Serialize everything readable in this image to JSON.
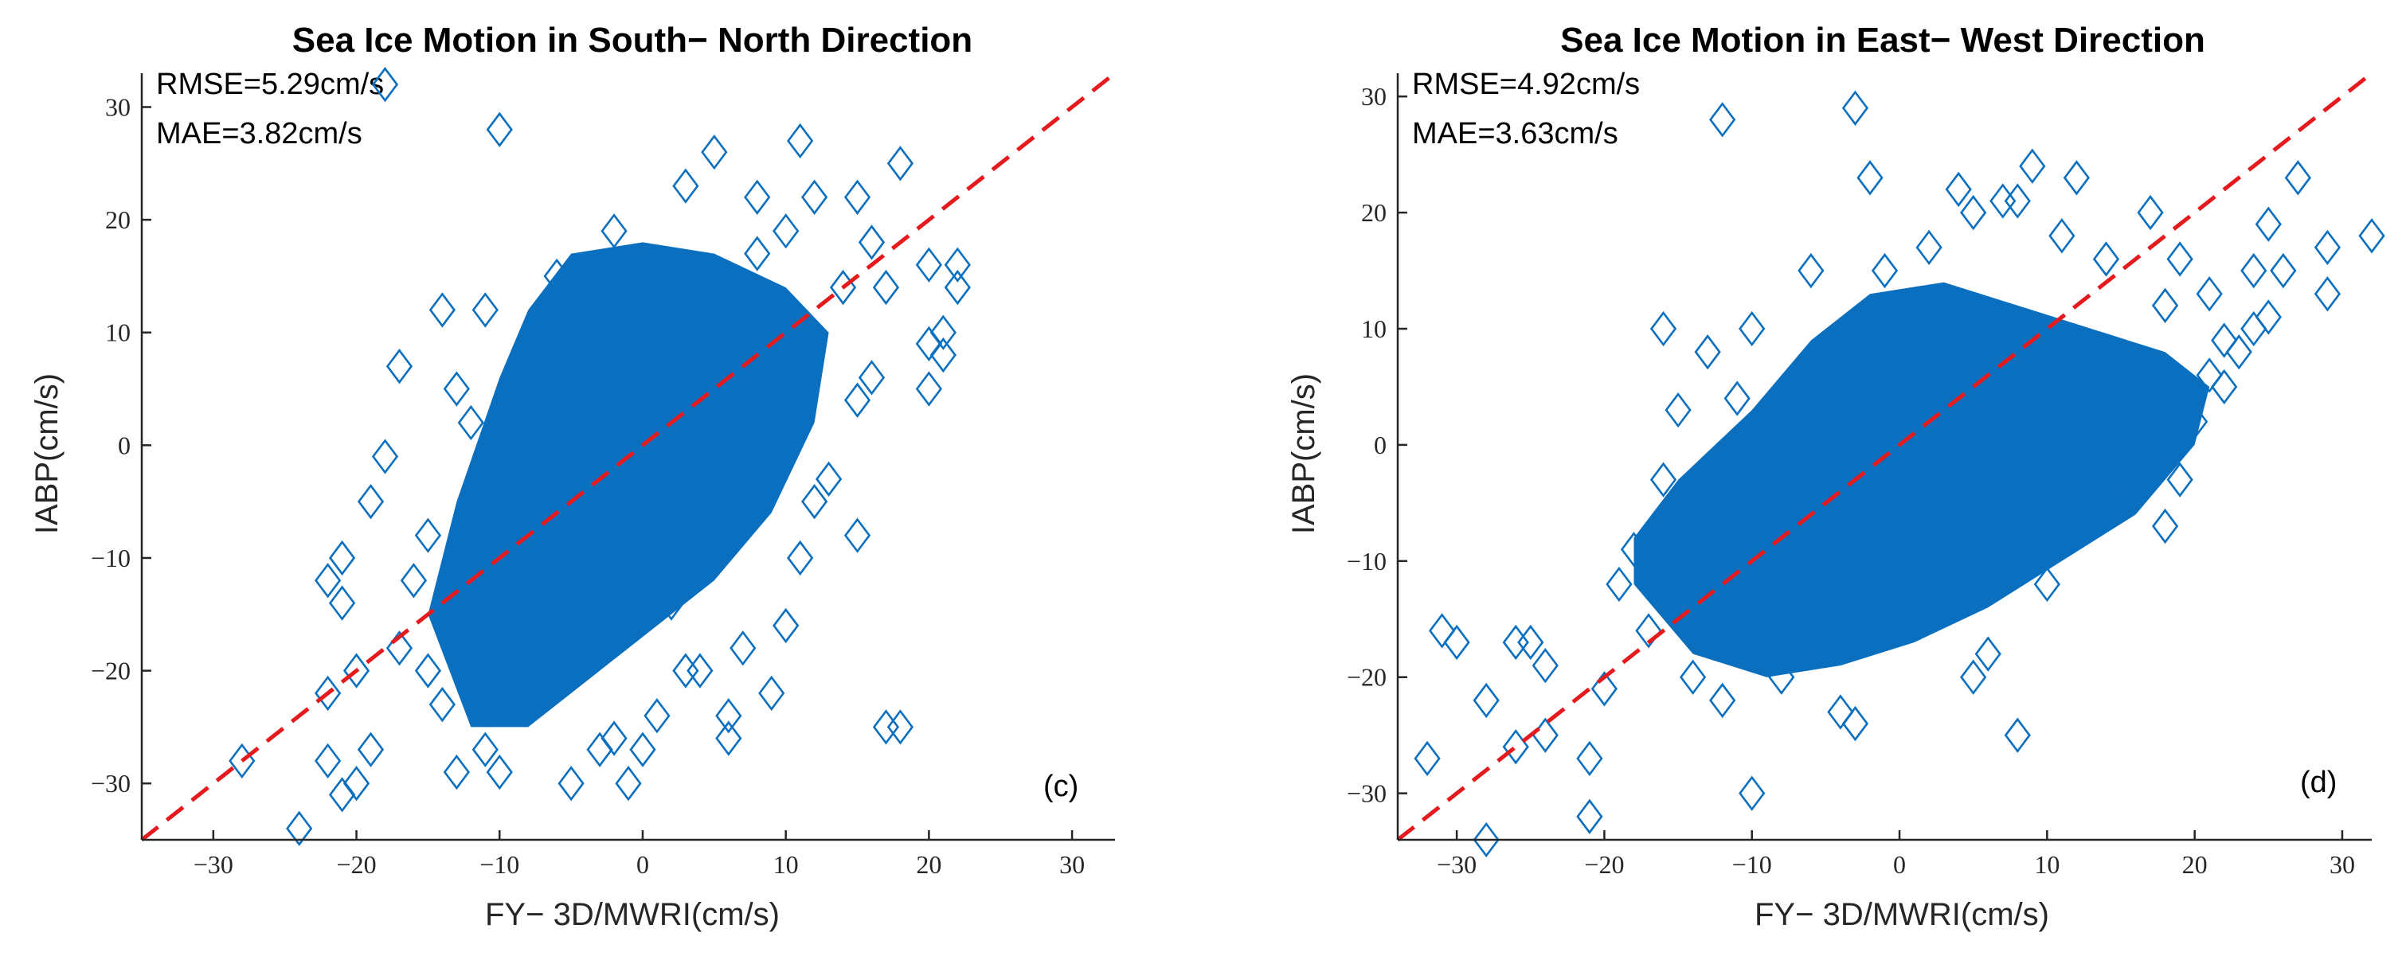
{
  "colors": {
    "marker": "#0b6fbf",
    "reference_line": "#e41a1c",
    "axis": "#262626"
  },
  "chart_data": [
    {
      "type": "scatter",
      "title": "Sea Ice Motion in South− North Direction",
      "xlabel": "FY− 3D/MWRI(cm/s)",
      "ylabel": "IABP(cm/s)",
      "xlim": [
        -35,
        33
      ],
      "ylim": [
        -35,
        33
      ],
      "xticks": [
        -30,
        -20,
        -10,
        0,
        10,
        20,
        30
      ],
      "yticks": [
        -30,
        -20,
        -10,
        0,
        10,
        20,
        30
      ],
      "xtick_labels": [
        "−30",
        "−20",
        "−10",
        "0",
        "10",
        "20",
        "30"
      ],
      "ytick_labels": [
        "−30",
        "−20",
        "−10",
        "0",
        "10",
        "20",
        "30"
      ],
      "annotations": [
        "RMSE=5.29cm/s",
        "MAE=3.82cm/s"
      ],
      "panel_label": "(c)",
      "marker": "diamond",
      "reference_line": {
        "style": "dashed",
        "points": [
          [
            -35,
            -35
          ],
          [
            33,
            33
          ]
        ]
      },
      "dense_cloud": [
        [
          -12,
          -25
        ],
        [
          -15,
          -15
        ],
        [
          -13,
          -5
        ],
        [
          -10,
          6
        ],
        [
          -8,
          12
        ],
        [
          -5,
          17
        ],
        [
          0,
          18
        ],
        [
          5,
          17
        ],
        [
          10,
          14
        ],
        [
          13,
          10
        ],
        [
          12,
          2
        ],
        [
          9,
          -6
        ],
        [
          5,
          -12
        ],
        [
          0,
          -17
        ],
        [
          -4,
          -21
        ],
        [
          -8,
          -25
        ]
      ],
      "points": [
        [
          -18,
          32
        ],
        [
          -10,
          28
        ],
        [
          11,
          27
        ],
        [
          18,
          25
        ],
        [
          5,
          26
        ],
        [
          3,
          23
        ],
        [
          8,
          22
        ],
        [
          12,
          22
        ],
        [
          15,
          22
        ],
        [
          16,
          18
        ],
        [
          14,
          14
        ],
        [
          17,
          14
        ],
        [
          20,
          16
        ],
        [
          22,
          16
        ],
        [
          22,
          14
        ],
        [
          21,
          10
        ],
        [
          21,
          8
        ],
        [
          20,
          9
        ],
        [
          20,
          5
        ],
        [
          16,
          6
        ],
        [
          15,
          4
        ],
        [
          13,
          -3
        ],
        [
          15,
          -8
        ],
        [
          10,
          -16
        ],
        [
          9,
          -22
        ],
        [
          6,
          -24
        ],
        [
          6,
          -26
        ],
        [
          17,
          -25
        ],
        [
          18,
          -25
        ],
        [
          -28,
          -28
        ],
        [
          -24,
          -34
        ],
        [
          -22,
          -28
        ],
        [
          -21,
          -31
        ],
        [
          -20,
          -30
        ],
        [
          -19,
          -27
        ],
        [
          -22,
          -22
        ],
        [
          -21,
          -14
        ],
        [
          -21,
          -10
        ],
        [
          -22,
          -12
        ],
        [
          -20,
          -20
        ],
        [
          -17,
          7
        ],
        [
          -14,
          12
        ],
        [
          -18,
          -1
        ],
        [
          -19,
          -5
        ],
        [
          -13,
          -29
        ],
        [
          -10,
          -29
        ],
        [
          -5,
          -30
        ],
        [
          -1,
          -30
        ],
        [
          -3,
          -27
        ],
        [
          -2,
          -26
        ],
        [
          -15,
          -20
        ],
        [
          -12,
          -18
        ],
        [
          -8,
          -22
        ],
        [
          3,
          -20
        ],
        [
          4,
          -20
        ],
        [
          -16,
          -12
        ],
        [
          -15,
          -8
        ],
        [
          -13,
          5
        ],
        [
          -12,
          2
        ],
        [
          7,
          -18
        ],
        [
          2,
          -14
        ],
        [
          -6,
          -18
        ],
        [
          -17,
          -18
        ],
        [
          -14,
          -23
        ],
        [
          -11,
          -27
        ],
        [
          1,
          -24
        ],
        [
          0,
          -27
        ],
        [
          11,
          -10
        ],
        [
          12,
          -5
        ],
        [
          -11,
          12
        ],
        [
          -6,
          15
        ],
        [
          0,
          16
        ],
        [
          -2,
          19
        ],
        [
          8,
          17
        ],
        [
          10,
          19
        ]
      ]
    },
    {
      "type": "scatter",
      "title": "Sea Ice Motion in East− West Direction",
      "xlabel": "FY− 3D/MWRI(cm/s)",
      "ylabel": "IABP(cm/s)",
      "xlim": [
        -34,
        32
      ],
      "ylim": [
        -34,
        32
      ],
      "xticks": [
        -30,
        -20,
        -10,
        0,
        10,
        20,
        30
      ],
      "yticks": [
        -30,
        -20,
        -10,
        0,
        10,
        20,
        30
      ],
      "xtick_labels": [
        "−30",
        "−20",
        "−10",
        "0",
        "10",
        "20",
        "30"
      ],
      "ytick_labels": [
        "−30",
        "−20",
        "−10",
        "0",
        "10",
        "20",
        "30"
      ],
      "annotations": [
        "RMSE=4.92cm/s",
        "MAE=3.63cm/s"
      ],
      "panel_label": "(d)",
      "marker": "diamond",
      "reference_line": {
        "style": "dashed",
        "points": [
          [
            -34,
            -34
          ],
          [
            32,
            32
          ]
        ]
      },
      "dense_cloud": [
        [
          -18,
          -12
        ],
        [
          -18,
          -8
        ],
        [
          -15,
          -3
        ],
        [
          -10,
          3
        ],
        [
          -6,
          9
        ],
        [
          -2,
          13
        ],
        [
          3,
          14
        ],
        [
          8,
          12
        ],
        [
          13,
          10
        ],
        [
          18,
          8
        ],
        [
          21,
          5
        ],
        [
          20,
          0
        ],
        [
          16,
          -6
        ],
        [
          11,
          -10
        ],
        [
          6,
          -14
        ],
        [
          1,
          -17
        ],
        [
          -4,
          -19
        ],
        [
          -9,
          -20
        ],
        [
          -14,
          -18
        ]
      ],
      "points": [
        [
          -12,
          28
        ],
        [
          -3,
          29
        ],
        [
          9,
          24
        ],
        [
          12,
          23
        ],
        [
          4,
          22
        ],
        [
          5,
          20
        ],
        [
          7,
          21
        ],
        [
          8,
          21
        ],
        [
          17,
          20
        ],
        [
          27,
          23
        ],
        [
          25,
          19
        ],
        [
          29,
          17
        ],
        [
          32,
          18
        ],
        [
          29,
          13
        ],
        [
          25,
          11
        ],
        [
          24,
          10
        ],
        [
          22,
          9
        ],
        [
          21,
          6
        ],
        [
          19,
          -3
        ],
        [
          18,
          -7
        ],
        [
          15,
          -5
        ],
        [
          8,
          -25
        ],
        [
          5,
          -20
        ],
        [
          -3,
          -24
        ],
        [
          -4,
          -23
        ],
        [
          -10,
          -30
        ],
        [
          -32,
          -27
        ],
        [
          -31,
          -16
        ],
        [
          -30,
          -17
        ],
        [
          -28,
          -34
        ],
        [
          -28,
          -22
        ],
        [
          -26,
          -17
        ],
        [
          -25,
          -17
        ],
        [
          -26,
          -26
        ],
        [
          -24,
          -25
        ],
        [
          -24,
          -19
        ],
        [
          -21,
          -32
        ],
        [
          -21,
          -27
        ],
        [
          -20,
          -21
        ],
        [
          -16,
          10
        ],
        [
          -13,
          8
        ],
        [
          -10,
          10
        ],
        [
          -11,
          4
        ],
        [
          -15,
          3
        ],
        [
          -16,
          -3
        ],
        [
          -18,
          -9
        ],
        [
          -19,
          -12
        ],
        [
          -17,
          -16
        ],
        [
          -14,
          -20
        ],
        [
          -12,
          -22
        ],
        [
          -8,
          -20
        ],
        [
          -6,
          -17
        ],
        [
          6,
          -18
        ],
        [
          10,
          -12
        ],
        [
          13,
          -3
        ],
        [
          16,
          -1
        ],
        [
          20,
          2
        ],
        [
          22,
          5
        ],
        [
          18,
          12
        ],
        [
          14,
          16
        ],
        [
          11,
          18
        ],
        [
          2,
          17
        ],
        [
          -1,
          15
        ],
        [
          -6,
          15
        ],
        [
          -2,
          23
        ],
        [
          24,
          15
        ],
        [
          23,
          8
        ],
        [
          21,
          13
        ],
        [
          26,
          15
        ],
        [
          19,
          16
        ]
      ]
    }
  ]
}
